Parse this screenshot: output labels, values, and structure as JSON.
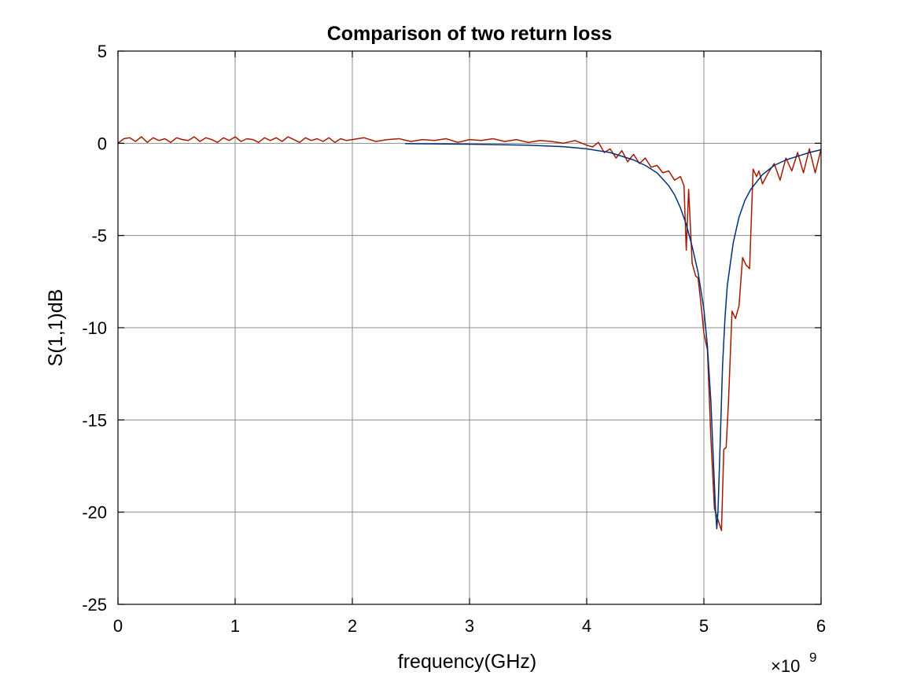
{
  "chart_data": {
    "type": "line",
    "title": "Comparison of two return loss",
    "xlabel": "frequency(GHz)",
    "ylabel": "S(1,1)dB",
    "x_exponent_label": "×10",
    "x_exponent": "9",
    "xlim": [
      0,
      6
    ],
    "ylim": [
      -25,
      5
    ],
    "x_ticks": [
      "0",
      "1",
      "2",
      "3",
      "4",
      "5",
      "6"
    ],
    "y_ticks": [
      "5",
      "0",
      "-5",
      "-10",
      "-15",
      "-20",
      "-25"
    ],
    "x_tick_values": [
      0,
      1,
      2,
      3,
      4,
      5,
      6
    ],
    "y_tick_values": [
      5,
      0,
      -5,
      -10,
      -15,
      -20,
      -25
    ],
    "grid": true,
    "legend": "none",
    "series": [
      {
        "color": "#00307a",
        "x": [
          2.45,
          3.0,
          3.5,
          3.8,
          4.0,
          4.2,
          4.4,
          4.5,
          4.6,
          4.7,
          4.75,
          4.8,
          4.85,
          4.9,
          4.95,
          5.0,
          5.03,
          5.06,
          5.08,
          5.1,
          5.11,
          5.12,
          5.14,
          5.16,
          5.18,
          5.2,
          5.25,
          5.3,
          5.35,
          5.4,
          5.5,
          5.6,
          5.7,
          5.8,
          5.9,
          6.0
        ],
        "y": [
          -0.02,
          -0.05,
          -0.1,
          -0.18,
          -0.3,
          -0.5,
          -0.9,
          -1.2,
          -1.6,
          -2.3,
          -2.8,
          -3.5,
          -4.4,
          -5.6,
          -7.0,
          -9.0,
          -11.0,
          -14.0,
          -17.0,
          -20.0,
          -20.9,
          -20.0,
          -16.0,
          -12.0,
          -9.5,
          -7.7,
          -5.4,
          -4.0,
          -3.1,
          -2.5,
          -1.7,
          -1.2,
          -0.9,
          -0.7,
          -0.5,
          -0.35
        ]
      },
      {
        "color": "#a31a00",
        "x": [
          0.0,
          0.05,
          0.1,
          0.15,
          0.2,
          0.25,
          0.3,
          0.35,
          0.4,
          0.45,
          0.5,
          0.55,
          0.6,
          0.65,
          0.7,
          0.75,
          0.8,
          0.85,
          0.9,
          0.95,
          1.0,
          1.05,
          1.1,
          1.15,
          1.2,
          1.25,
          1.3,
          1.35,
          1.4,
          1.45,
          1.5,
          1.55,
          1.6,
          1.65,
          1.7,
          1.75,
          1.8,
          1.85,
          1.9,
          1.95,
          2.0,
          2.1,
          2.2,
          2.3,
          2.4,
          2.5,
          2.6,
          2.7,
          2.8,
          2.9,
          3.0,
          3.1,
          3.2,
          3.3,
          3.4,
          3.5,
          3.6,
          3.7,
          3.8,
          3.9,
          4.0,
          4.05,
          4.1,
          4.15,
          4.2,
          4.25,
          4.3,
          4.35,
          4.4,
          4.45,
          4.5,
          4.55,
          4.6,
          4.65,
          4.7,
          4.75,
          4.8,
          4.83,
          4.85,
          4.87,
          4.9,
          4.93,
          4.95,
          4.98,
          5.0,
          5.03,
          5.06,
          5.09,
          5.12,
          5.15,
          5.17,
          5.19,
          5.21,
          5.24,
          5.27,
          5.3,
          5.33,
          5.36,
          5.39,
          5.42,
          5.45,
          5.47,
          5.5,
          5.55,
          5.6,
          5.65,
          5.7,
          5.75,
          5.8,
          5.85,
          5.9,
          5.95,
          6.0
        ],
        "y": [
          0.0,
          0.25,
          0.3,
          0.1,
          0.35,
          0.05,
          0.3,
          0.15,
          0.25,
          0.05,
          0.3,
          0.2,
          0.15,
          0.35,
          0.1,
          0.3,
          0.2,
          0.05,
          0.3,
          0.15,
          0.35,
          0.1,
          0.25,
          0.2,
          0.05,
          0.3,
          0.15,
          0.3,
          0.1,
          0.35,
          0.2,
          0.05,
          0.3,
          0.15,
          0.25,
          0.1,
          0.3,
          0.05,
          0.25,
          0.15,
          0.2,
          0.3,
          0.1,
          0.2,
          0.25,
          0.1,
          0.2,
          0.15,
          0.25,
          0.05,
          0.2,
          0.15,
          0.25,
          0.1,
          0.2,
          0.05,
          0.15,
          0.1,
          0.0,
          0.15,
          -0.1,
          -0.2,
          0.05,
          -0.5,
          -0.3,
          -0.8,
          -0.4,
          -1.0,
          -0.6,
          -1.1,
          -0.8,
          -1.3,
          -1.2,
          -1.6,
          -1.5,
          -2.0,
          -1.8,
          -2.3,
          -5.8,
          -2.5,
          -6.5,
          -7.2,
          -7.3,
          -9.0,
          -10.3,
          -11.2,
          -16.0,
          -19.8,
          -20.4,
          -21.0,
          -16.6,
          -16.5,
          -14.0,
          -9.1,
          -9.5,
          -8.8,
          -6.2,
          -6.6,
          -6.8,
          -1.4,
          -1.8,
          -1.5,
          -2.2,
          -1.6,
          -1.1,
          -2.0,
          -0.8,
          -1.5,
          -0.5,
          -1.6,
          -0.3,
          -1.6,
          -0.3
        ]
      }
    ]
  }
}
